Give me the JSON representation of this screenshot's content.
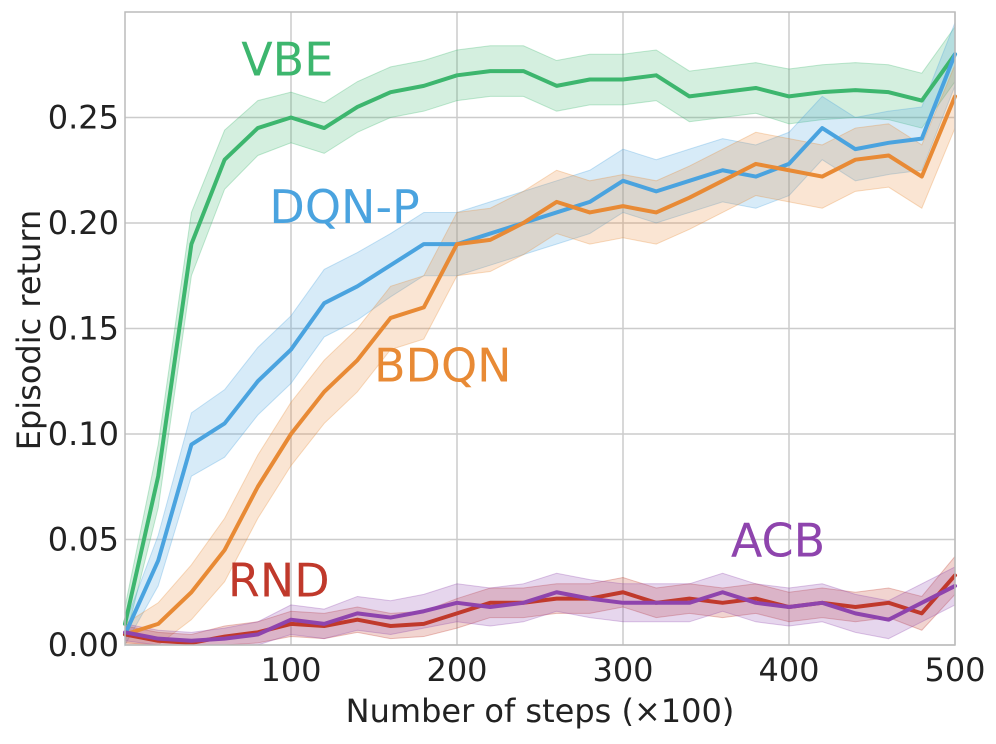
{
  "chart_data": {
    "type": "line",
    "title": "",
    "xlabel": "Number of steps (×100)",
    "ylabel": "Episodic return",
    "xlim": [
      0,
      500
    ],
    "ylim": [
      0,
      0.3
    ],
    "grid": true,
    "x_ticks": [
      100,
      200,
      300,
      400,
      500
    ],
    "x_tick_labels": [
      "100",
      "200",
      "300",
      "400",
      "500"
    ],
    "y_ticks": [
      0.0,
      0.05,
      0.1,
      0.15,
      0.2,
      0.25
    ],
    "y_tick_labels": [
      "0.00",
      "0.05",
      "0.10",
      "0.15",
      "0.20",
      "0.25"
    ],
    "x": [
      0,
      20,
      40,
      60,
      80,
      100,
      120,
      140,
      160,
      180,
      200,
      220,
      240,
      260,
      280,
      300,
      320,
      340,
      360,
      380,
      400,
      420,
      440,
      460,
      480,
      500
    ],
    "series": [
      {
        "name": "VBE",
        "color": "#3db66e",
        "values": [
          0.01,
          0.08,
          0.19,
          0.23,
          0.245,
          0.25,
          0.245,
          0.255,
          0.262,
          0.265,
          0.27,
          0.272,
          0.272,
          0.265,
          0.268,
          0.268,
          0.27,
          0.26,
          0.262,
          0.264,
          0.26,
          0.262,
          0.263,
          0.262,
          0.258,
          0.28
        ],
        "band": [
          0.008,
          0.015,
          0.015,
          0.014,
          0.013,
          0.012,
          0.012,
          0.012,
          0.012,
          0.012,
          0.012,
          0.012,
          0.012,
          0.012,
          0.012,
          0.012,
          0.012,
          0.012,
          0.012,
          0.012,
          0.013,
          0.013,
          0.013,
          0.013,
          0.013,
          0.013
        ]
      },
      {
        "name": "DQN-P",
        "color": "#4aa3df",
        "values": [
          0.005,
          0.04,
          0.095,
          0.105,
          0.125,
          0.14,
          0.162,
          0.17,
          0.18,
          0.19,
          0.19,
          0.195,
          0.2,
          0.205,
          0.21,
          0.22,
          0.215,
          0.22,
          0.225,
          0.222,
          0.228,
          0.245,
          0.235,
          0.238,
          0.24,
          0.28
        ],
        "band": [
          0.005,
          0.012,
          0.015,
          0.016,
          0.016,
          0.016,
          0.016,
          0.016,
          0.015,
          0.015,
          0.015,
          0.015,
          0.015,
          0.015,
          0.015,
          0.015,
          0.015,
          0.015,
          0.015,
          0.015,
          0.015,
          0.015,
          0.015,
          0.015,
          0.015,
          0.015
        ]
      },
      {
        "name": "BDQN",
        "color": "#e88a35",
        "values": [
          0.005,
          0.01,
          0.025,
          0.045,
          0.075,
          0.1,
          0.12,
          0.135,
          0.155,
          0.16,
          0.19,
          0.192,
          0.2,
          0.21,
          0.205,
          0.208,
          0.205,
          0.212,
          0.22,
          0.228,
          0.225,
          0.222,
          0.23,
          0.232,
          0.222,
          0.26
        ],
        "band": [
          0.005,
          0.01,
          0.013,
          0.015,
          0.015,
          0.015,
          0.015,
          0.015,
          0.015,
          0.015,
          0.015,
          0.015,
          0.015,
          0.015,
          0.015,
          0.015,
          0.015,
          0.015,
          0.015,
          0.015,
          0.015,
          0.015,
          0.015,
          0.015,
          0.015,
          0.015
        ]
      },
      {
        "name": "RND",
        "color": "#c0392b",
        "values": [
          0.005,
          0.002,
          0.001,
          0.004,
          0.006,
          0.01,
          0.009,
          0.012,
          0.009,
          0.01,
          0.015,
          0.02,
          0.02,
          0.022,
          0.022,
          0.025,
          0.02,
          0.022,
          0.02,
          0.022,
          0.018,
          0.02,
          0.018,
          0.02,
          0.015,
          0.033
        ],
        "band": [
          0.004,
          0.004,
          0.004,
          0.005,
          0.005,
          0.006,
          0.006,
          0.006,
          0.006,
          0.006,
          0.007,
          0.007,
          0.007,
          0.007,
          0.007,
          0.007,
          0.007,
          0.007,
          0.007,
          0.007,
          0.007,
          0.007,
          0.007,
          0.007,
          0.008,
          0.009
        ]
      },
      {
        "name": "ACB",
        "color": "#8e44ad",
        "values": [
          0.006,
          0.003,
          0.002,
          0.003,
          0.005,
          0.012,
          0.01,
          0.015,
          0.013,
          0.016,
          0.02,
          0.018,
          0.02,
          0.025,
          0.022,
          0.02,
          0.02,
          0.02,
          0.025,
          0.02,
          0.018,
          0.02,
          0.015,
          0.012,
          0.02,
          0.028
        ],
        "band": [
          0.004,
          0.004,
          0.004,
          0.005,
          0.006,
          0.007,
          0.007,
          0.008,
          0.008,
          0.008,
          0.009,
          0.009,
          0.009,
          0.009,
          0.009,
          0.009,
          0.009,
          0.009,
          0.009,
          0.009,
          0.009,
          0.009,
          0.009,
          0.009,
          0.009,
          0.009
        ]
      }
    ],
    "annotations": [
      {
        "text": "VBE",
        "color": "#3db66e",
        "x": 70,
        "y": 0.27
      },
      {
        "text": "DQN-P",
        "color": "#4aa3df",
        "x": 87,
        "y": 0.2
      },
      {
        "text": "BDQN",
        "color": "#e88a35",
        "x": 150,
        "y": 0.125
      },
      {
        "text": "RND",
        "color": "#c0392b",
        "x": 62,
        "y": 0.023
      },
      {
        "text": "ACB",
        "color": "#8e44ad",
        "x": 365,
        "y": 0.042
      }
    ]
  }
}
